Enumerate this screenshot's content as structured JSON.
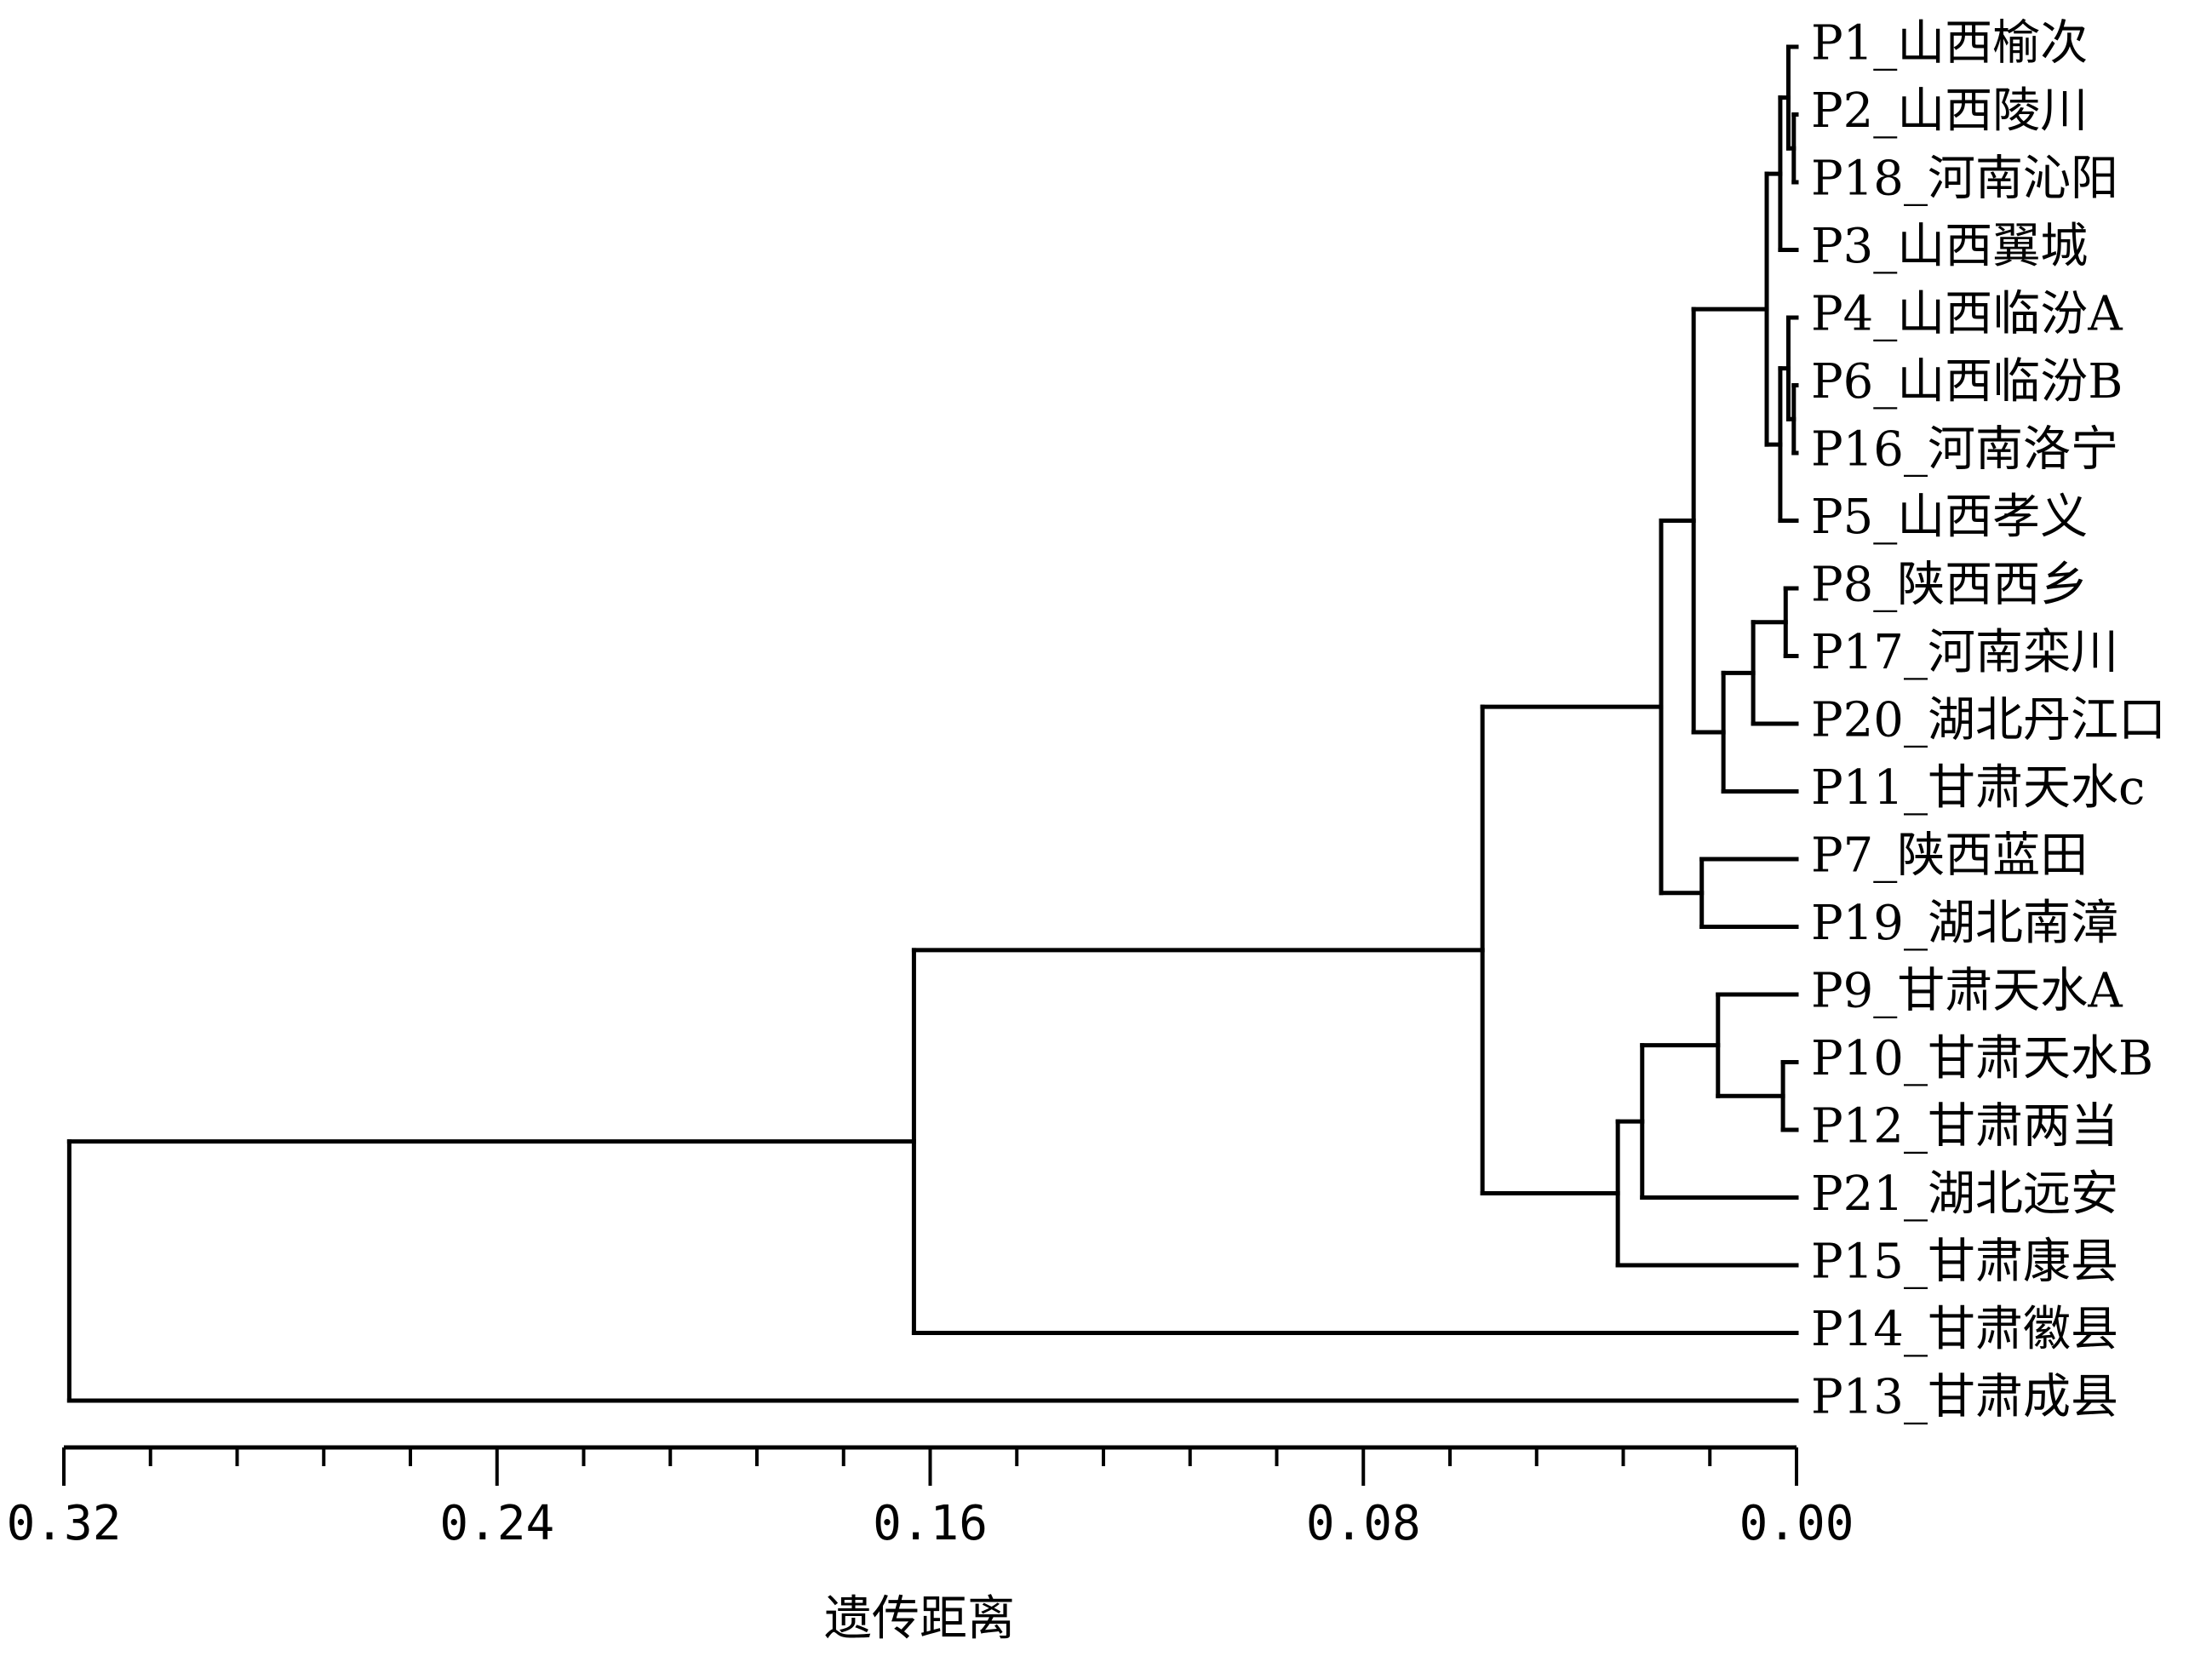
{
  "chart_data": {
    "type": "dendrogram",
    "xlabel": "遗传距离",
    "xlim": [
      0.32,
      0.0
    ],
    "x_ticks": [
      "0.32",
      "0.24",
      "0.16",
      "0.08",
      "0.00"
    ],
    "leaves": [
      "P1_山西榆次",
      "P2_山西陵川",
      "P18_河南沁阳",
      "P3_山西翼城",
      "P4_山西临汾A",
      "P6_山西临汾B",
      "P16_河南洛宁",
      "P5_山西孝义",
      "P8_陕西西乡",
      "P17_河南栾川",
      "P20_湖北丹江口",
      "P11_甘肃天水c",
      "P7_陕西蓝田",
      "P19_湖北南漳",
      "P9_甘肃天水A",
      "P10_甘肃天水B",
      "P12_甘肃两当",
      "P21_湖北远安",
      "P15_甘肃康县",
      "P14_甘肃徽县",
      "P13_甘肃成县"
    ],
    "merges": [
      {
        "id": "n1",
        "children": [
          "P2_山西陵川",
          "P18_河南沁阳"
        ],
        "height": 0.0005
      },
      {
        "id": "n2",
        "children": [
          "P1_山西榆次",
          "n1"
        ],
        "height": 0.0015
      },
      {
        "id": "n3",
        "children": [
          "n2",
          "P3_山西翼城"
        ],
        "height": 0.003
      },
      {
        "id": "n4",
        "children": [
          "P6_山西临汾B",
          "P16_河南洛宁"
        ],
        "height": 0.0005
      },
      {
        "id": "n5",
        "children": [
          "P4_山西临汾A",
          "n4"
        ],
        "height": 0.0015
      },
      {
        "id": "n6",
        "children": [
          "n5",
          "P5_山西孝义"
        ],
        "height": 0.003
      },
      {
        "id": "n7",
        "children": [
          "n3",
          "n6"
        ],
        "height": 0.0055
      },
      {
        "id": "n8",
        "children": [
          "P8_陕西西乡",
          "P17_河南栾川"
        ],
        "height": 0.002
      },
      {
        "id": "n9",
        "children": [
          "n8",
          "P20_湖北丹江口"
        ],
        "height": 0.008
      },
      {
        "id": "n10",
        "children": [
          "n9",
          "P11_甘肃天水c"
        ],
        "height": 0.0135
      },
      {
        "id": "n11",
        "children": [
          "n7",
          "n10"
        ],
        "height": 0.019
      },
      {
        "id": "n12",
        "children": [
          "P7_陕西蓝田",
          "P19_湖北南漳"
        ],
        "height": 0.0175
      },
      {
        "id": "n13",
        "children": [
          "n11",
          "n12"
        ],
        "height": 0.025
      },
      {
        "id": "n14",
        "children": [
          "P10_甘肃天水B",
          "P12_甘肃两当"
        ],
        "height": 0.0025
      },
      {
        "id": "n15",
        "children": [
          "P9_甘肃天水A",
          "n14"
        ],
        "height": 0.0145
      },
      {
        "id": "n16",
        "children": [
          "n15",
          "P21_湖北远安"
        ],
        "height": 0.0285
      },
      {
        "id": "n17",
        "children": [
          "n16",
          "P15_甘肃康县"
        ],
        "height": 0.033
      },
      {
        "id": "n18",
        "children": [
          "n13",
          "n17"
        ],
        "height": 0.058
      },
      {
        "id": "n19",
        "children": [
          "n18",
          "P14_甘肃徽县"
        ],
        "height": 0.163
      },
      {
        "id": "n20",
        "children": [
          "n19",
          "P13_甘肃成县"
        ],
        "height": 0.319
      }
    ]
  }
}
